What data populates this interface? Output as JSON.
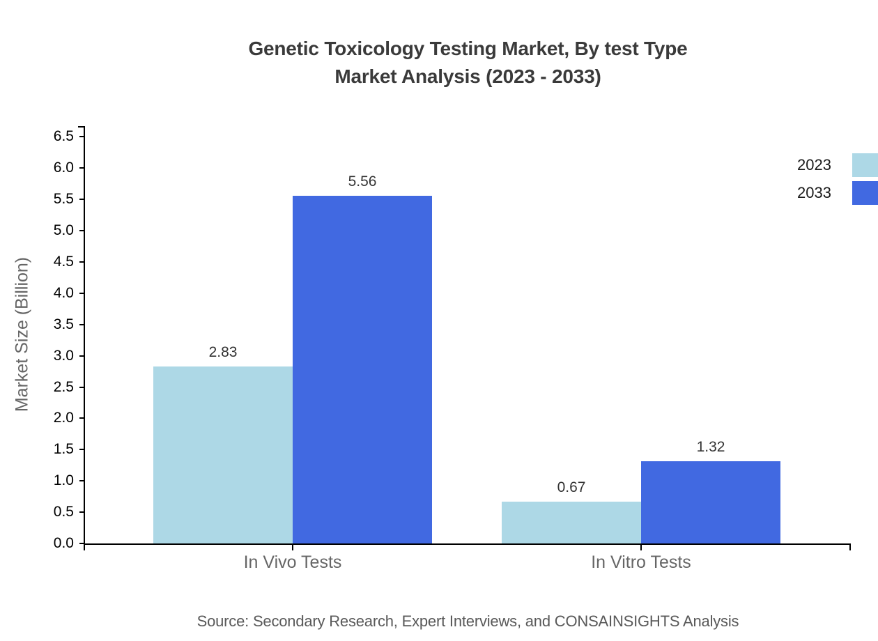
{
  "chart": {
    "title_line1": "Genetic Toxicology Testing Market, By test Type",
    "title_line2": "Market Analysis (2023 - 2033)",
    "source": "Source: Secondary Research, Expert Interviews, and CONSAINSIGHTS Analysis"
  },
  "chart_data": {
    "type": "bar",
    "title": "Genetic Toxicology Testing Market, By test Type Market Analysis (2023 - 2033)",
    "title_lines": [
      "Genetic Toxicology Testing Market, By test Type",
      "Market Analysis (2023 - 2033)"
    ],
    "categories": [
      "In Vivo Tests",
      "In Vitro Tests"
    ],
    "series": [
      {
        "name": "2023",
        "values": [
          2.83,
          0.67
        ],
        "color": "#ADD8E6"
      },
      {
        "name": "2033",
        "values": [
          5.56,
          1.32
        ],
        "color": "#4169E1"
      }
    ],
    "value_labels": [
      "2.83",
      "5.56",
      "0.67",
      "1.32"
    ],
    "xlabel": "",
    "ylabel": "Market Size (Billion)",
    "ylim": [
      0,
      6.672
    ],
    "ytick_step": 0.5,
    "ytick_max": 6.5,
    "ytick_decimals": 1,
    "grid": false,
    "legend_position": "top-right",
    "axis_color": "#000000",
    "text_colors": {
      "title": "#3a3a3a",
      "tick_labels": "#000000",
      "category_labels": "#666666",
      "value_labels": "#333333",
      "axis_title": "#666666",
      "source": "#595959"
    },
    "source": "Source: Secondary Research, Expert Interviews, and CONSAINSIGHTS Analysis"
  }
}
